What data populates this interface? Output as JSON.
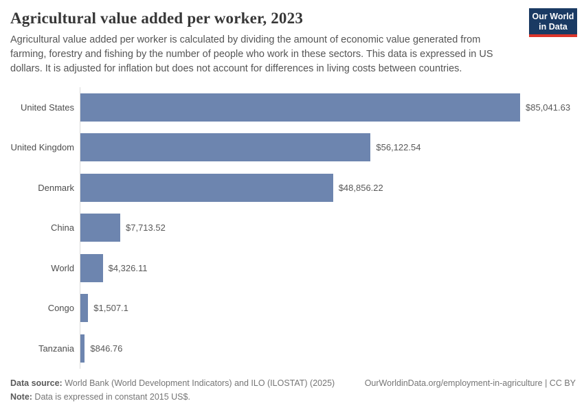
{
  "header": {
    "title": "Agricultural value added per worker, 2023",
    "subtitle": "Agricultural value added per worker is calculated by dividing the amount of economic value generated from farming, forestry and fishing by the number of people who work in these sectors. This data is expressed in US dollars. It is adjusted for inflation but does not account for differences in living costs between countries.",
    "logo": {
      "line1": "Our World",
      "line2": "in Data"
    }
  },
  "chart_data": {
    "type": "bar",
    "orientation": "horizontal",
    "title": "Agricultural value added per worker, 2023",
    "categories": [
      "United States",
      "United Kingdom",
      "Denmark",
      "China",
      "World",
      "Congo",
      "Tanzania"
    ],
    "values": [
      85041.63,
      56122.54,
      48856.22,
      7713.52,
      4326.11,
      1507.1,
      846.76
    ],
    "value_labels": [
      "$85,041.63",
      "$56,122.54",
      "$48,856.22",
      "$7,713.52",
      "$4,326.11",
      "$1,507.1",
      "$846.76"
    ],
    "unit": "constant 2015 US$",
    "xlim": [
      0,
      85041.63
    ],
    "grid": false,
    "legend": "none",
    "bar_color": "#6d85af"
  },
  "footer": {
    "datasource_label": "Data source:",
    "datasource_text": " World Bank (World Development Indicators) and ILO (ILOSTAT) (2025)",
    "note_label": "Note:",
    "note_text": " Data is expressed in constant 2015 US$.",
    "link": "OurWorldinData.org/employment-in-agriculture | CC BY"
  },
  "colors": {
    "bar": "#6d85af",
    "axis_line": "#dadada",
    "logo_navy": "#1a3a63",
    "logo_red": "#dc352b"
  }
}
